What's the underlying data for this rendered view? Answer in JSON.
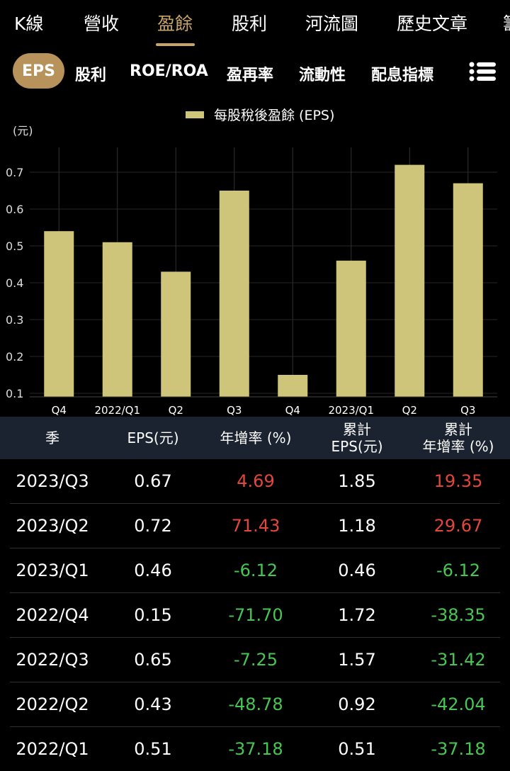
{
  "top_tabs": [
    {
      "label": "K線"
    },
    {
      "label": "營收"
    },
    {
      "label": "盈餘"
    },
    {
      "label": "股利"
    },
    {
      "label": "河流圖"
    },
    {
      "label": "歷史文章"
    },
    {
      "label": "籌"
    }
  ],
  "active_top_tab_index": 2,
  "sub_tabs": [
    {
      "label": "EPS"
    },
    {
      "label": "股利"
    },
    {
      "label": "ROE/ROA"
    },
    {
      "label": "盈再率"
    },
    {
      "label": "流動性"
    },
    {
      "label": "配息指標"
    }
  ],
  "menu_icon": "list-menu-icon",
  "colors": {
    "accent": "#c9a46a",
    "bar": "#cfc57a",
    "positive": "#e2473b",
    "negative": "#47c652",
    "header_bg": "#1b2230"
  },
  "chart_data": {
    "type": "bar",
    "legend": "每股稅後盈餘 (EPS)",
    "ylabel": "(元)",
    "ylim": [
      0.1,
      0.75
    ],
    "yticks": [
      "0.1",
      "0.2",
      "0.3",
      "0.4",
      "0.5",
      "0.6",
      "0.7"
    ],
    "categories": [
      "Q4",
      "2022/Q1",
      "Q2",
      "Q3",
      "Q4",
      "2023/Q1",
      "Q2",
      "Q3"
    ],
    "values": [
      0.54,
      0.51,
      0.43,
      0.65,
      0.15,
      0.46,
      0.72,
      0.67
    ],
    "grid": true,
    "legend_position": "top-center"
  },
  "table": {
    "headers": [
      {
        "line1": "季",
        "line2": ""
      },
      {
        "line1": "EPS(元)",
        "line2": ""
      },
      {
        "line1": "年增率 (%)",
        "line2": ""
      },
      {
        "line1": "累計",
        "line2": "EPS(元)"
      },
      {
        "line1": "累計",
        "line2": "年增率 (%)"
      }
    ],
    "rows": [
      {
        "season": "2023/Q3",
        "eps": "0.67",
        "yoy": "4.69",
        "yoy_sign": "pos",
        "cum_eps": "1.85",
        "cum_yoy": "19.35",
        "cum_sign": "pos"
      },
      {
        "season": "2023/Q2",
        "eps": "0.72",
        "yoy": "71.43",
        "yoy_sign": "pos",
        "cum_eps": "1.18",
        "cum_yoy": "29.67",
        "cum_sign": "pos"
      },
      {
        "season": "2023/Q1",
        "eps": "0.46",
        "yoy": "-6.12",
        "yoy_sign": "neg",
        "cum_eps": "0.46",
        "cum_yoy": "-6.12",
        "cum_sign": "neg"
      },
      {
        "season": "2022/Q4",
        "eps": "0.15",
        "yoy": "-71.70",
        "yoy_sign": "neg",
        "cum_eps": "1.72",
        "cum_yoy": "-38.35",
        "cum_sign": "neg"
      },
      {
        "season": "2022/Q3",
        "eps": "0.65",
        "yoy": "-7.25",
        "yoy_sign": "neg",
        "cum_eps": "1.57",
        "cum_yoy": "-31.42",
        "cum_sign": "neg"
      },
      {
        "season": "2022/Q2",
        "eps": "0.43",
        "yoy": "-48.78",
        "yoy_sign": "neg",
        "cum_eps": "0.92",
        "cum_yoy": "-42.04",
        "cum_sign": "neg"
      },
      {
        "season": "2022/Q1",
        "eps": "0.51",
        "yoy": "-37.18",
        "yoy_sign": "neg",
        "cum_eps": "0.51",
        "cum_yoy": "-37.18",
        "cum_sign": "neg"
      }
    ]
  }
}
